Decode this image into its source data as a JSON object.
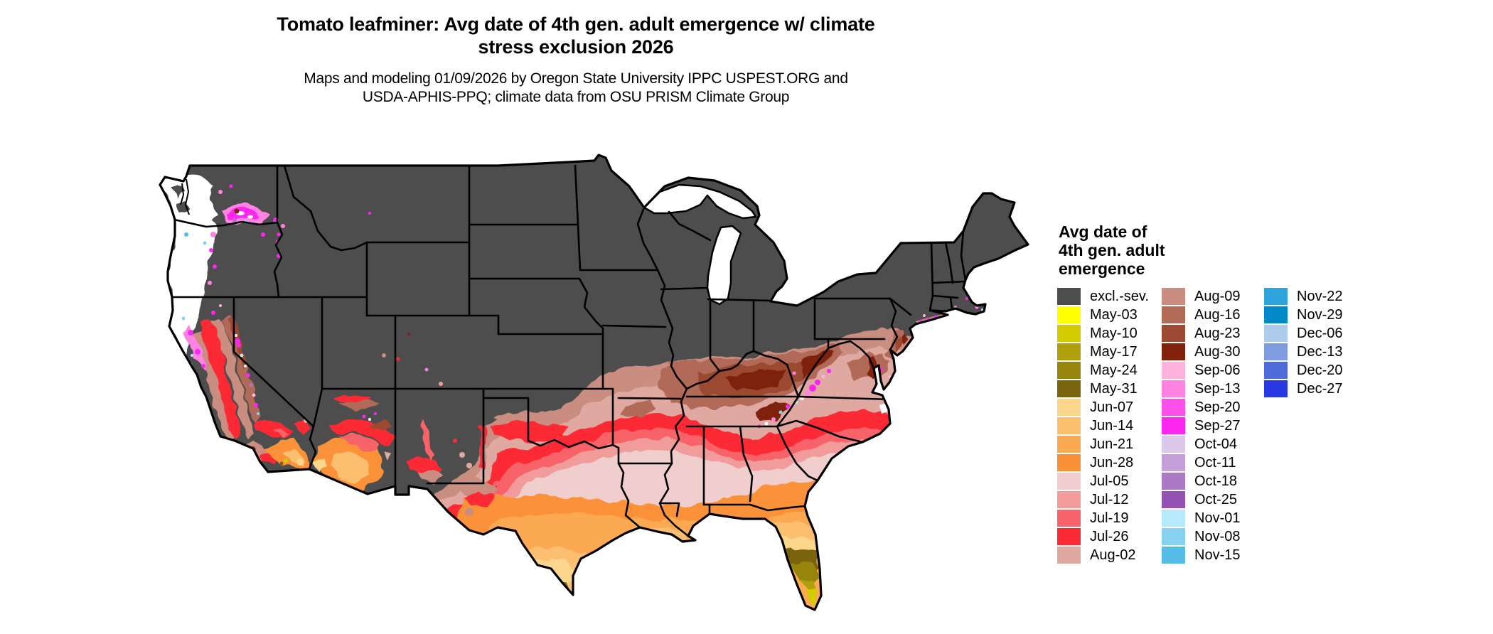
{
  "header": {
    "title_line1": "Tomato leafminer: Avg date of 4th gen. adult emergence w/ climate",
    "title_line2": "stress exclusion 2026",
    "subtitle_line1": "Maps and modeling 01/09/2026 by Oregon State University IPPC USPEST.ORG and",
    "subtitle_line2": "USDA-APHIS-PPQ; climate data from OSU PRISM Climate Group"
  },
  "legend": {
    "title_line1": "Avg date of",
    "title_line2": "4th gen. adult",
    "title_line3": "emergence",
    "columns": [
      [
        {
          "label": "excl.-sev.",
          "color": "#4D4D4D"
        },
        {
          "label": "May-03",
          "color": "#FFFF00"
        },
        {
          "label": "May-10",
          "color": "#D4CC00"
        },
        {
          "label": "May-17",
          "color": "#B0A010"
        },
        {
          "label": "May-24",
          "color": "#97840D"
        },
        {
          "label": "May-31",
          "color": "#7A640E"
        },
        {
          "label": "Jun-07",
          "color": "#FCD68C"
        },
        {
          "label": "Jun-14",
          "color": "#FCBF6F"
        },
        {
          "label": "Jun-21",
          "color": "#FCA953"
        },
        {
          "label": "Jun-28",
          "color": "#FB9137"
        },
        {
          "label": "Jul-05",
          "color": "#F1CECE"
        },
        {
          "label": "Jul-12",
          "color": "#F19C9B"
        },
        {
          "label": "Jul-19",
          "color": "#F8646B"
        },
        {
          "label": "Jul-26",
          "color": "#FB2B35"
        },
        {
          "label": "Aug-02",
          "color": "#DFA9A2"
        }
      ],
      [
        {
          "label": "Aug-09",
          "color": "#C98E80"
        },
        {
          "label": "Aug-16",
          "color": "#B26B59"
        },
        {
          "label": "Aug-23",
          "color": "#9C4A33"
        },
        {
          "label": "Aug-30",
          "color": "#7F210B"
        },
        {
          "label": "Sep-06",
          "color": "#FFB2DC"
        },
        {
          "label": "Sep-13",
          "color": "#FE83E3"
        },
        {
          "label": "Sep-20",
          "color": "#FD50EA"
        },
        {
          "label": "Sep-27",
          "color": "#FC26F1"
        },
        {
          "label": "Oct-04",
          "color": "#DBC8EA"
        },
        {
          "label": "Oct-11",
          "color": "#C5A0D8"
        },
        {
          "label": "Oct-18",
          "color": "#AB79C6"
        },
        {
          "label": "Oct-25",
          "color": "#9351B4"
        },
        {
          "label": "Nov-01",
          "color": "#B5E9FB"
        },
        {
          "label": "Nov-08",
          "color": "#87D2F0"
        },
        {
          "label": "Nov-15",
          "color": "#55BBE7"
        }
      ],
      [
        {
          "label": "Nov-22",
          "color": "#2FA4DC"
        },
        {
          "label": "Nov-29",
          "color": "#0089C8"
        },
        {
          "label": "Dec-06",
          "color": "#AFCBEC"
        },
        {
          "label": "Dec-13",
          "color": "#7F9CE0"
        },
        {
          "label": "Dec-20",
          "color": "#4E6CD9"
        },
        {
          "label": "Dec-27",
          "color": "#2839E2"
        }
      ]
    ]
  },
  "map": {
    "excluded_fill": "#4D4D4D",
    "border_color": "#000000",
    "background": "#FFFFFF"
  }
}
